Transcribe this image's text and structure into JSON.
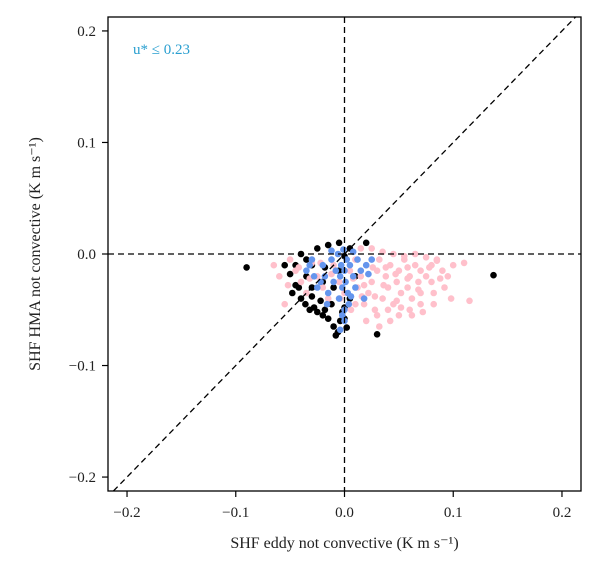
{
  "chart_data": {
    "type": "scatter",
    "title": "",
    "xlabel": "SHF eddy not convective (K m s⁻¹)",
    "ylabel": "SHF HMA not convective (K m s⁻¹)",
    "xlim": [
      -0.2175,
      0.2175
    ],
    "ylim": [
      -0.2125,
      0.2125
    ],
    "x_ticks": [
      -0.2,
      -0.1,
      0.0,
      0.1,
      0.2
    ],
    "x_tick_labels": [
      "−0.2",
      "−0.1",
      "0.0",
      "0.1",
      "0.2"
    ],
    "y_ticks": [
      -0.2,
      -0.1,
      0.0,
      0.1,
      0.2
    ],
    "y_tick_labels": [
      "−0.2",
      "−0.1",
      "0.0",
      "0.1",
      "0.2"
    ],
    "grid": false,
    "reference_lines": [
      "x = 0",
      "y = 0",
      "y = x"
    ],
    "annotation": {
      "text": "u* ≤ 0.23",
      "color": "#2a9fd0"
    },
    "series": [
      {
        "color": "#000000",
        "points": [
          [
            -0.09,
            -0.012
          ],
          [
            -0.055,
            -0.01
          ],
          [
            -0.05,
            -0.018
          ],
          [
            -0.045,
            -0.028
          ],
          [
            -0.048,
            -0.035
          ],
          [
            -0.04,
            -0.04
          ],
          [
            -0.042,
            -0.03
          ],
          [
            -0.036,
            -0.045
          ],
          [
            -0.035,
            -0.02
          ],
          [
            -0.032,
            -0.05
          ],
          [
            -0.03,
            -0.038
          ],
          [
            -0.028,
            -0.048
          ],
          [
            -0.025,
            -0.052
          ],
          [
            -0.022,
            -0.042
          ],
          [
            -0.02,
            -0.055
          ],
          [
            -0.018,
            -0.05
          ],
          [
            -0.015,
            -0.058
          ],
          [
            -0.012,
            -0.045
          ],
          [
            -0.01,
            -0.065
          ],
          [
            -0.008,
            -0.073
          ],
          [
            -0.006,
            -0.07
          ],
          [
            -0.004,
            -0.06
          ],
          [
            -0.002,
            -0.052
          ],
          [
            0.0,
            -0.058
          ],
          [
            0.002,
            -0.066
          ],
          [
            0.0,
            -0.048
          ],
          [
            -0.01,
            -0.03
          ],
          [
            -0.02,
            -0.025
          ],
          [
            -0.03,
            -0.01
          ],
          [
            -0.04,
            0.0
          ],
          [
            -0.035,
            -0.005
          ],
          [
            -0.025,
            0.005
          ],
          [
            -0.015,
            0.008
          ],
          [
            -0.005,
            0.01
          ],
          [
            0.005,
            0.005
          ],
          [
            0.02,
            0.01
          ],
          [
            0.03,
            -0.072
          ],
          [
            0.137,
            -0.019
          ],
          [
            0.0,
            -0.002
          ],
          [
            -0.045,
            -0.01
          ],
          [
            0.01,
            -0.02
          ],
          [
            0.005,
            -0.04
          ],
          [
            -0.005,
            -0.015
          ],
          [
            -0.03,
            -0.03
          ],
          [
            -0.018,
            -0.012
          ]
        ]
      },
      {
        "color": "#ffc0cb",
        "points": [
          [
            -0.065,
            -0.01
          ],
          [
            -0.06,
            -0.02
          ],
          [
            -0.055,
            -0.045
          ],
          [
            -0.05,
            -0.005
          ],
          [
            -0.045,
            -0.015
          ],
          [
            -0.04,
            -0.025
          ],
          [
            -0.035,
            -0.035
          ],
          [
            -0.03,
            -0.008
          ],
          [
            -0.025,
            -0.02
          ],
          [
            -0.02,
            -0.03
          ],
          [
            -0.015,
            -0.04
          ],
          [
            -0.01,
            -0.01
          ],
          [
            -0.005,
            -0.025
          ],
          [
            0.0,
            -0.035
          ],
          [
            0.005,
            -0.015
          ],
          [
            0.01,
            -0.005
          ],
          [
            0.012,
            -0.03
          ],
          [
            0.015,
            -0.02
          ],
          [
            0.018,
            -0.045
          ],
          [
            0.02,
            -0.01
          ],
          [
            0.022,
            -0.035
          ],
          [
            0.025,
            -0.025
          ],
          [
            0.028,
            -0.05
          ],
          [
            0.03,
            -0.015
          ],
          [
            0.032,
            -0.005
          ],
          [
            0.035,
            -0.04
          ],
          [
            0.038,
            -0.02
          ],
          [
            0.04,
            -0.03
          ],
          [
            0.042,
            -0.01
          ],
          [
            0.045,
            -0.045
          ],
          [
            0.048,
            -0.025
          ],
          [
            0.05,
            -0.015
          ],
          [
            0.052,
            -0.035
          ],
          [
            0.055,
            -0.005
          ],
          [
            0.058,
            -0.03
          ],
          [
            0.06,
            -0.02
          ],
          [
            0.062,
            -0.04
          ],
          [
            0.065,
            -0.01
          ],
          [
            0.068,
            -0.025
          ],
          [
            0.07,
            -0.015
          ],
          [
            0.075,
            -0.02
          ],
          [
            0.08,
            -0.01
          ],
          [
            0.082,
            -0.035
          ],
          [
            0.085,
            -0.005
          ],
          [
            0.09,
            -0.015
          ],
          [
            0.095,
            -0.02
          ],
          [
            0.1,
            -0.01
          ],
          [
            0.115,
            -0.042
          ],
          [
            0.11,
            -0.008
          ],
          [
            0.07,
            -0.045
          ],
          [
            0.06,
            -0.05
          ],
          [
            0.05,
            -0.055
          ],
          [
            0.04,
            -0.05
          ],
          [
            0.03,
            -0.055
          ],
          [
            0.02,
            -0.06
          ],
          [
            0.01,
            -0.045
          ],
          [
            0.015,
            0.005
          ],
          [
            0.025,
            0.005
          ],
          [
            0.035,
            0.002
          ],
          [
            0.045,
            0.0
          ],
          [
            0.055,
            -0.002
          ],
          [
            0.065,
            0.0
          ],
          [
            0.075,
            -0.003
          ],
          [
            0.085,
            -0.006
          ],
          [
            0.092,
            -0.03
          ],
          [
            0.098,
            -0.04
          ],
          [
            0.07,
            -0.035
          ],
          [
            0.08,
            -0.025
          ],
          [
            0.058,
            -0.012
          ],
          [
            0.047,
            -0.018
          ],
          [
            0.036,
            -0.028
          ],
          [
            0.026,
            -0.012
          ],
          [
            0.016,
            -0.038
          ],
          [
            0.006,
            -0.05
          ],
          [
            -0.004,
            -0.04
          ],
          [
            -0.012,
            -0.018
          ],
          [
            -0.022,
            -0.008
          ],
          [
            -0.032,
            -0.022
          ],
          [
            -0.042,
            -0.012
          ],
          [
            -0.052,
            -0.028
          ],
          [
            0.008,
            -0.022
          ],
          [
            0.018,
            -0.028
          ],
          [
            0.028,
            -0.038
          ],
          [
            0.038,
            -0.012
          ],
          [
            0.048,
            -0.042
          ],
          [
            0.058,
            -0.022
          ],
          [
            0.068,
            -0.032
          ],
          [
            0.078,
            -0.012
          ],
          [
            0.088,
            -0.022
          ],
          [
            0.042,
            -0.06
          ],
          [
            0.032,
            -0.065
          ],
          [
            0.052,
            -0.048
          ],
          [
            0.062,
            -0.055
          ],
          [
            0.072,
            -0.052
          ],
          [
            0.082,
            -0.045
          ]
        ]
      },
      {
        "color": "#6495ed",
        "points": [
          [
            -0.035,
            -0.015
          ],
          [
            -0.03,
            -0.005
          ],
          [
            -0.025,
            -0.03
          ],
          [
            -0.02,
            -0.01
          ],
          [
            -0.018,
            -0.02
          ],
          [
            -0.015,
            -0.035
          ],
          [
            -0.012,
            -0.005
          ],
          [
            -0.01,
            -0.025
          ],
          [
            -0.008,
            -0.015
          ],
          [
            -0.006,
            0.0
          ],
          [
            -0.005,
            -0.04
          ],
          [
            -0.004,
            -0.02
          ],
          [
            -0.003,
            -0.01
          ],
          [
            -0.002,
            -0.03
          ],
          [
            -0.001,
            0.004
          ],
          [
            0.0,
            -0.015
          ],
          [
            0.001,
            -0.025
          ],
          [
            0.002,
            -0.005
          ],
          [
            0.003,
            -0.035
          ],
          [
            0.004,
            -0.045
          ],
          [
            0.0,
            -0.05
          ],
          [
            -0.002,
            -0.055
          ],
          [
            0.0,
            -0.06
          ],
          [
            -0.004,
            -0.068
          ],
          [
            0.005,
            -0.01
          ],
          [
            0.008,
            -0.02
          ],
          [
            0.01,
            -0.03
          ],
          [
            0.012,
            -0.005
          ],
          [
            0.015,
            -0.015
          ],
          [
            0.018,
            -0.04
          ],
          [
            0.02,
            -0.01
          ],
          [
            0.022,
            -0.018
          ],
          [
            0.025,
            -0.005
          ],
          [
            0.008,
            0.002
          ],
          [
            -0.012,
            0.003
          ],
          [
            -0.022,
            -0.025
          ],
          [
            -0.028,
            -0.02
          ],
          [
            -0.032,
            -0.01
          ],
          [
            -0.016,
            -0.045
          ],
          [
            0.006,
            -0.038
          ]
        ]
      }
    ]
  }
}
